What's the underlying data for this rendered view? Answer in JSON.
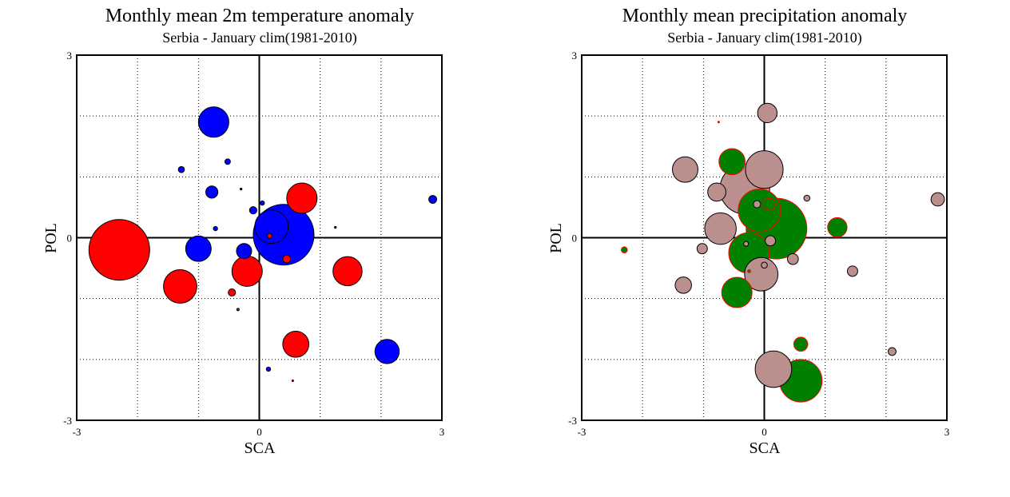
{
  "chart_data": [
    {
      "type": "scatter",
      "subtype": "bubble",
      "title": "Monthly mean 2m temperature anomaly",
      "subtitle": "Serbia - January  clim(1981-2010)",
      "xlabel": "SCA",
      "ylabel": "POL",
      "xlim": [
        -3,
        3
      ],
      "ylim": [
        -3,
        3
      ],
      "grid": true,
      "xticks": [
        "-3",
        "0",
        "3"
      ],
      "yticks": [
        "-3",
        "0",
        "3"
      ],
      "colors": {
        "positive": "#ff0000",
        "negative": "#0000ff",
        "edge": "#000000"
      },
      "series": [
        {
          "name": "",
          "color": "#ff0000",
          "points": [
            {
              "x": -2.3,
              "y": -0.2,
              "r": 1.0
            },
            {
              "x": -1.3,
              "y": -0.8,
              "r": 0.55
            },
            {
              "x": -0.2,
              "y": -0.55,
              "r": 0.5
            },
            {
              "x": 0.7,
              "y": 0.65,
              "r": 0.5
            },
            {
              "x": 1.45,
              "y": -0.55,
              "r": 0.48
            },
            {
              "x": 0.6,
              "y": -1.75,
              "r": 0.43
            },
            {
              "x": 0.45,
              "y": -0.35,
              "r": 0.13
            },
            {
              "x": -0.45,
              "y": -0.9,
              "r": 0.12
            },
            {
              "x": 0.17,
              "y": 0.03,
              "r": 0.08
            },
            {
              "x": -0.35,
              "y": -1.18,
              "r": 0.04
            },
            {
              "x": 0.55,
              "y": -2.35,
              "r": 0.02
            }
          ]
        },
        {
          "name": "",
          "color": "#0000ff",
          "points": [
            {
              "x": 0.4,
              "y": 0.05,
              "r": 1.0
            },
            {
              "x": 0.2,
              "y": 0.18,
              "r": 0.55
            },
            {
              "x": -0.75,
              "y": 1.9,
              "r": 0.5
            },
            {
              "x": -1.0,
              "y": -0.18,
              "r": 0.42
            },
            {
              "x": 2.1,
              "y": -1.87,
              "r": 0.4
            },
            {
              "x": -0.25,
              "y": -0.22,
              "r": 0.25
            },
            {
              "x": -0.78,
              "y": 0.75,
              "r": 0.2
            },
            {
              "x": 2.85,
              "y": 0.63,
              "r": 0.13
            },
            {
              "x": -0.1,
              "y": 0.45,
              "r": 0.12
            },
            {
              "x": -1.28,
              "y": 1.12,
              "r": 0.1
            },
            {
              "x": -0.52,
              "y": 1.25,
              "r": 0.09
            },
            {
              "x": 0.15,
              "y": -2.16,
              "r": 0.07
            },
            {
              "x": 0.05,
              "y": 0.57,
              "r": 0.07
            },
            {
              "x": -0.72,
              "y": 0.15,
              "r": 0.07
            },
            {
              "x": -0.3,
              "y": 0.8,
              "r": 0.03
            },
            {
              "x": 1.25,
              "y": 0.17,
              "r": 0.03
            }
          ]
        }
      ]
    },
    {
      "type": "scatter",
      "subtype": "bubble",
      "title": "Monthly mean precipitation anomaly",
      "subtitle": "Serbia - January  clim(1981-2010)",
      "xlabel": "SCA",
      "ylabel": "POL",
      "xlim": [
        -3,
        3
      ],
      "ylim": [
        -3,
        3
      ],
      "grid": true,
      "xticks": [
        "-3",
        "0",
        "3"
      ],
      "yticks": [
        "-3",
        "0",
        "3"
      ],
      "colors": {
        "positive": "#008000",
        "negative": "#bc8f8f",
        "edge_positive": "#ff0000",
        "edge_negative": "#000000"
      },
      "series": [
        {
          "name": "",
          "color": "#008000",
          "points": [
            {
              "x": 0.2,
              "y": 0.15,
              "r": 1.0
            },
            {
              "x": -0.08,
              "y": 0.45,
              "r": 0.7
            },
            {
              "x": -0.25,
              "y": -0.25,
              "r": 0.67
            },
            {
              "x": 0.6,
              "y": -2.35,
              "r": 0.7
            },
            {
              "x": -0.45,
              "y": -0.9,
              "r": 0.5
            },
            {
              "x": -0.53,
              "y": 1.25,
              "r": 0.43
            },
            {
              "x": 1.2,
              "y": 0.17,
              "r": 0.32
            },
            {
              "x": 0.6,
              "y": -1.75,
              "r": 0.23
            },
            {
              "x": 0.08,
              "y": 0.55,
              "r": 0.2
            },
            {
              "x": -2.3,
              "y": -0.2,
              "r": 0.1
            },
            {
              "x": -0.25,
              "y": -0.55,
              "r": 0.05
            },
            {
              "x": -0.75,
              "y": 1.9,
              "r": 0.02
            }
          ]
        },
        {
          "name": "",
          "color": "#bc8f8f",
          "points": [
            {
              "x": -0.32,
              "y": 0.8,
              "r": 0.82
            },
            {
              "x": 0.0,
              "y": 1.12,
              "r": 0.62
            },
            {
              "x": -0.05,
              "y": -0.6,
              "r": 0.55
            },
            {
              "x": 0.15,
              "y": -2.16,
              "r": 0.6
            },
            {
              "x": -0.72,
              "y": 0.15,
              "r": 0.52
            },
            {
              "x": -1.3,
              "y": 1.12,
              "r": 0.42
            },
            {
              "x": 0.05,
              "y": 2.05,
              "r": 0.32
            },
            {
              "x": -0.78,
              "y": 0.75,
              "r": 0.3
            },
            {
              "x": -1.33,
              "y": -0.78,
              "r": 0.27
            },
            {
              "x": 2.85,
              "y": 0.63,
              "r": 0.22
            },
            {
              "x": 0.1,
              "y": -0.05,
              "r": 0.17
            },
            {
              "x": 0.47,
              "y": -0.35,
              "r": 0.18
            },
            {
              "x": -1.02,
              "y": -0.18,
              "r": 0.17
            },
            {
              "x": 1.45,
              "y": -0.55,
              "r": 0.17
            },
            {
              "x": 2.1,
              "y": -1.87,
              "r": 0.13
            },
            {
              "x": -0.12,
              "y": 0.55,
              "r": 0.12
            },
            {
              "x": 0.0,
              "y": -0.45,
              "r": 0.1
            },
            {
              "x": 0.7,
              "y": 0.65,
              "r": 0.1
            },
            {
              "x": -0.3,
              "y": -0.1,
              "r": 0.08
            }
          ]
        }
      ]
    }
  ]
}
